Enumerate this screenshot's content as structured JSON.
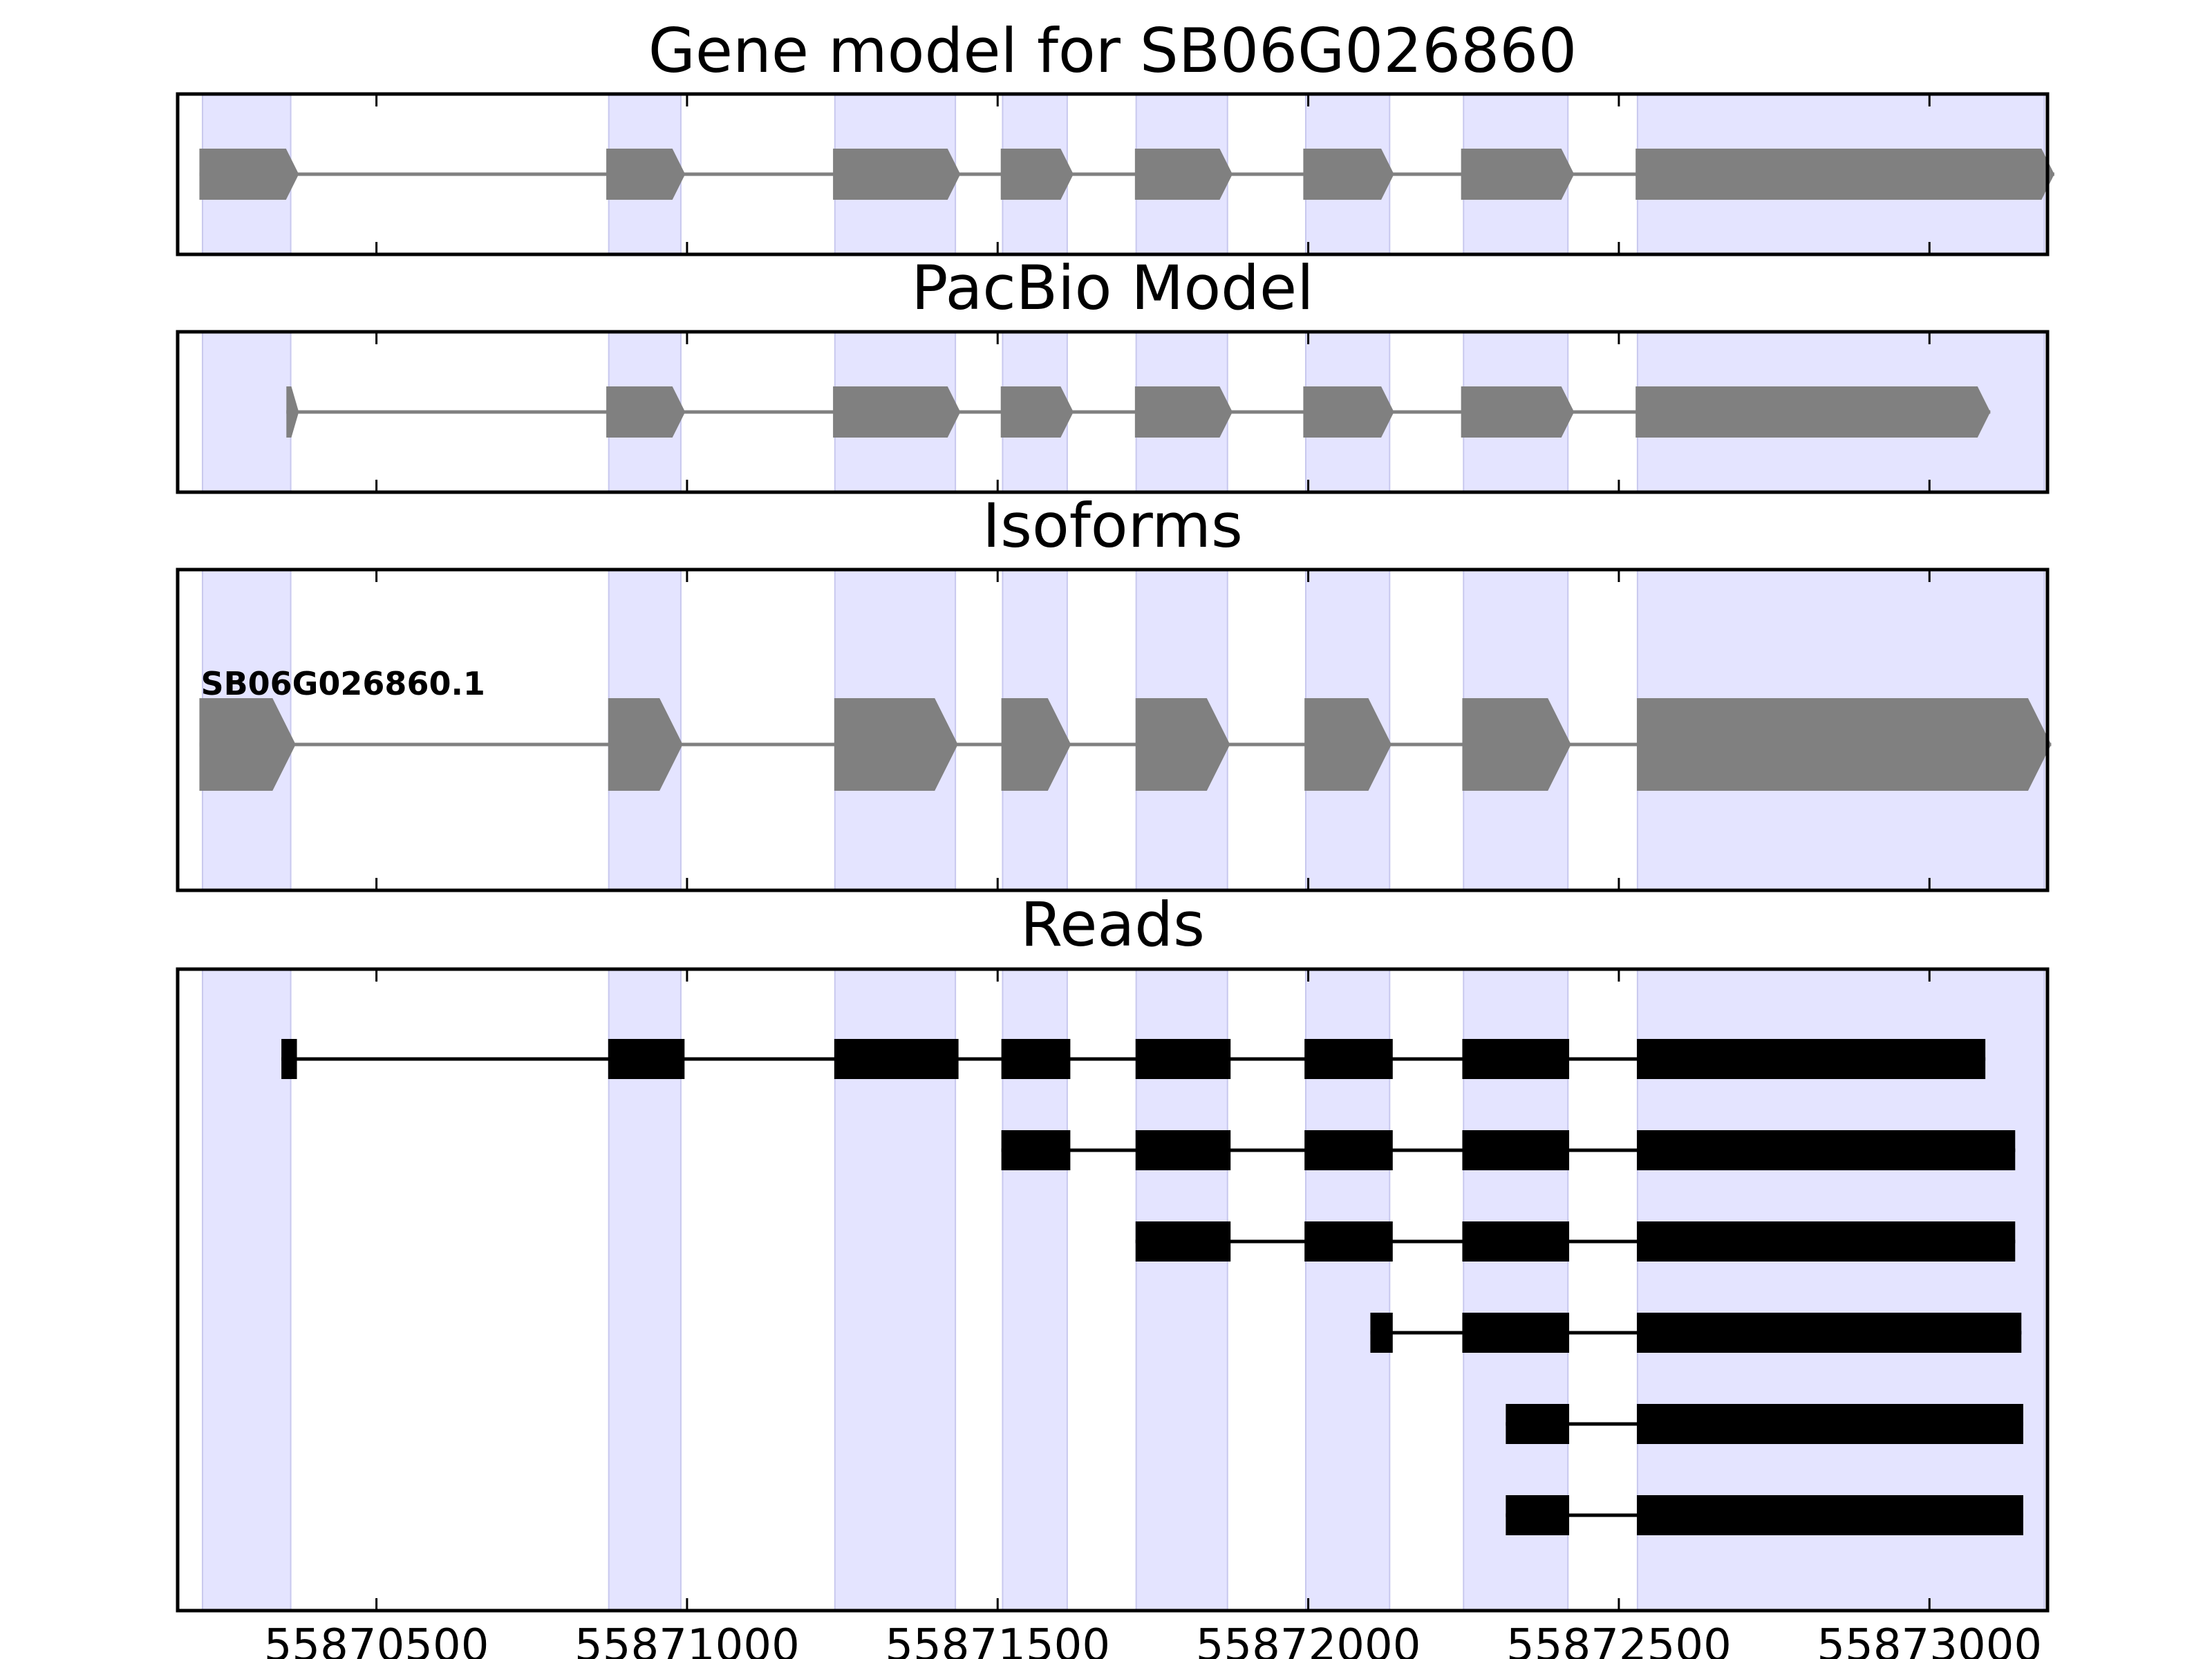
{
  "chart_data": {
    "type": "gene-structure",
    "xlim": [
      55870180,
      55873190
    ],
    "x_ticks": [
      55870500,
      55871000,
      55871500,
      55872000,
      55872500,
      55873000
    ],
    "x_tick_labels": [
      "55870500",
      "55871000",
      "55871500",
      "55872000",
      "55872500",
      "55873000"
    ],
    "highlight_color": "#e4e4ff",
    "feature_color": "#808080",
    "read_color": "#000000",
    "reference_exons": [
      [
        55870220,
        55870362
      ],
      [
        55870874,
        55870990
      ],
      [
        55871238,
        55871432
      ],
      [
        55871508,
        55871612
      ],
      [
        55871723,
        55871870
      ],
      [
        55871996,
        55872131
      ],
      [
        55872250,
        55872418
      ],
      [
        55872530,
        55873185
      ]
    ],
    "panels": [
      {
        "id": "gene-model",
        "title": "Gene model for SB06G026860",
        "kind": "arrow-model",
        "tracks": [
          {
            "label": "",
            "exons": [
              [
                55870215,
                55870375
              ],
              [
                55870870,
                55870997
              ],
              [
                55871235,
                55871440
              ],
              [
                55871505,
                55871622
              ],
              [
                55871721,
                55871878
              ],
              [
                55871992,
                55872138
              ],
              [
                55872246,
                55872428
              ],
              [
                55872527,
                55873201
              ]
            ]
          }
        ]
      },
      {
        "id": "pacbio-model",
        "title": "PacBio Model",
        "kind": "arrow-model",
        "tracks": [
          {
            "label": "",
            "exons": [
              [
                55870355,
                55870375
              ],
              [
                55870870,
                55870997
              ],
              [
                55871235,
                55871440
              ],
              [
                55871505,
                55871622
              ],
              [
                55871721,
                55871878
              ],
              [
                55871992,
                55872138
              ],
              [
                55872246,
                55872428
              ],
              [
                55872527,
                55873098
              ]
            ]
          }
        ]
      },
      {
        "id": "isoforms",
        "title": "Isoforms",
        "kind": "arrow-model",
        "tracks": [
          {
            "label": "SB06G026860.1",
            "exons": [
              [
                55870215,
                55870370
              ],
              [
                55870873,
                55870993
              ],
              [
                55871237,
                55871436
              ],
              [
                55871506,
                55871618
              ],
              [
                55871722,
                55871874
              ],
              [
                55871994,
                55872134
              ],
              [
                55872248,
                55872423
              ],
              [
                55872529,
                55873196
              ]
            ]
          }
        ]
      },
      {
        "id": "reads",
        "title": "Reads",
        "kind": "reads",
        "tracks": [
          {
            "label": "",
            "exons": [
              [
                55870347,
                55870372
              ],
              [
                55870873,
                55870996
              ],
              [
                55871237,
                55871437
              ],
              [
                55871506,
                55871617
              ],
              [
                55871722,
                55871875
              ],
              [
                55871994,
                55872136
              ],
              [
                55872248,
                55872420
              ],
              [
                55872529,
                55873090
              ]
            ]
          },
          {
            "label": "",
            "exons": [
              [
                55871506,
                55871617
              ],
              [
                55871722,
                55871875
              ],
              [
                55871994,
                55872136
              ],
              [
                55872248,
                55872420
              ],
              [
                55872529,
                55873138
              ]
            ]
          },
          {
            "label": "",
            "exons": [
              [
                55871722,
                55871875
              ],
              [
                55871994,
                55872136
              ],
              [
                55872248,
                55872420
              ],
              [
                55872529,
                55873138
              ]
            ]
          },
          {
            "label": "",
            "exons": [
              [
                55872100,
                55872136
              ],
              [
                55872248,
                55872420
              ],
              [
                55872529,
                55873148
              ]
            ]
          },
          {
            "label": "",
            "exons": [
              [
                55872318,
                55872420
              ],
              [
                55872529,
                55873151
              ]
            ]
          },
          {
            "label": "",
            "exons": [
              [
                55872318,
                55872420
              ],
              [
                55872529,
                55873151
              ]
            ]
          }
        ]
      }
    ]
  }
}
